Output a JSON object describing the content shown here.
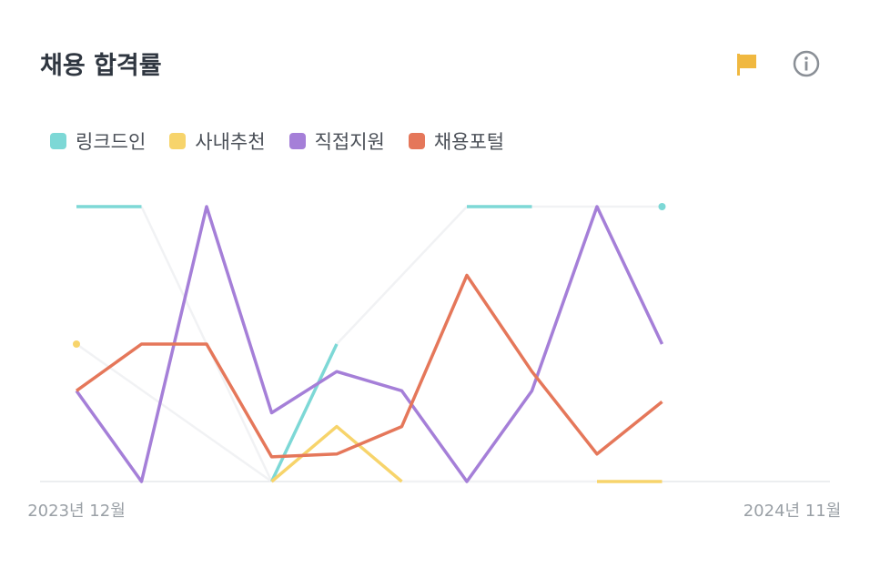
{
  "chart_data": {
    "type": "line",
    "title": "채용 합격률",
    "categories": [
      "2023년 12월",
      null,
      null,
      null,
      null,
      null,
      null,
      null,
      null,
      null,
      null,
      "2024년 11월"
    ],
    "series": [
      {
        "name": "링크드인",
        "color": "#7dd8d6",
        "values": [
          100,
          100,
          null,
          0,
          50,
          null,
          100,
          100,
          null,
          100,
          null,
          null
        ]
      },
      {
        "name": "사내추천",
        "color": "#f7d46b",
        "values": [
          50,
          null,
          null,
          0,
          20,
          0,
          null,
          null,
          0,
          0,
          null,
          null
        ]
      },
      {
        "name": "직접지원",
        "color": "#a57fd8",
        "values": [
          33,
          0,
          100,
          25,
          40,
          33,
          0,
          33,
          100,
          50,
          null,
          null
        ]
      },
      {
        "name": "채용포털",
        "color": "#e5775a",
        "values": [
          33,
          50,
          50,
          9,
          10,
          20,
          75,
          40,
          10,
          29,
          null,
          null
        ]
      }
    ],
    "ylim": [
      0,
      100
    ]
  }
}
